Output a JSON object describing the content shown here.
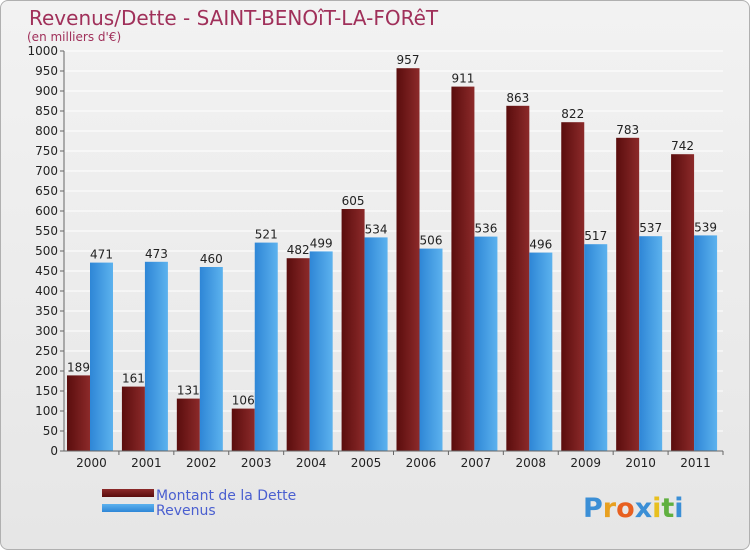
{
  "chart_data": {
    "type": "bar",
    "title": "Revenus/Dette - SAINT-BENOîT-LA-FORêT",
    "subtitle": "(en milliers d'€)",
    "categories": [
      "2000",
      "2001",
      "2002",
      "2003",
      "2004",
      "2005",
      "2006",
      "2007",
      "2008",
      "2009",
      "2010",
      "2011"
    ],
    "series": [
      {
        "name": "Montant de la Dette",
        "color": "#7a1a1a",
        "values": [
          189,
          161,
          131,
          106,
          482,
          605,
          957,
          911,
          863,
          822,
          783,
          742
        ]
      },
      {
        "name": "Revenus",
        "color": "#4aa3e8",
        "values": [
          471,
          473,
          460,
          521,
          499,
          534,
          506,
          536,
          496,
          517,
          537,
          539
        ]
      }
    ],
    "yticks": [
      0,
      50,
      100,
      150,
      200,
      250,
      300,
      350,
      400,
      450,
      500,
      550,
      600,
      650,
      700,
      750,
      800,
      850,
      900,
      950,
      1000
    ],
    "ylim": [
      0,
      1000
    ],
    "grid": true,
    "legend_position": "bottom-left"
  },
  "logo": {
    "letters": [
      "P",
      "r",
      "o",
      "x",
      "i",
      "t",
      "i"
    ],
    "colors": [
      "#3b8fd6",
      "#e8a020",
      "#e86020",
      "#3b8fd6",
      "#e8c020",
      "#60b040",
      "#3b8fd6"
    ]
  }
}
